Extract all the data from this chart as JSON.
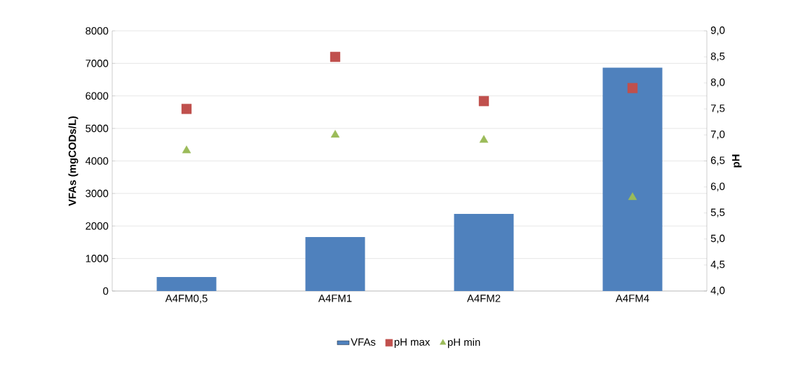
{
  "chart_data": {
    "type": "bar",
    "categories": [
      "A4FM0,5",
      "A4FM1",
      "A4FM2",
      "A4FM4"
    ],
    "series": [
      {
        "name": "VFAs",
        "color": "#4f81bd",
        "values": [
          430,
          1660,
          2370,
          6870
        ]
      },
      {
        "name": "pH max",
        "type": "scatter",
        "axis": "y2",
        "marker": "square",
        "color": "#c0504d",
        "values": [
          7.5,
          8.5,
          7.65,
          7.9
        ]
      },
      {
        "name": "pH min",
        "type": "scatter",
        "axis": "y2",
        "marker": "triangle",
        "color": "#9bbb59",
        "values": [
          6.7,
          7.0,
          6.9,
          5.8
        ]
      }
    ],
    "ylabel": "VFAs (mgCODs/L)",
    "y2label": "pH",
    "ylim": [
      0,
      8000
    ],
    "yticks": [
      0,
      1000,
      2000,
      3000,
      4000,
      5000,
      6000,
      7000,
      8000
    ],
    "y2lim": [
      4,
      9
    ],
    "y2ticks": [
      {
        "value": 4,
        "label": "4,0"
      },
      {
        "value": 4.5,
        "label": "4,5"
      },
      {
        "value": 5,
        "label": "5,0"
      },
      {
        "value": 5.5,
        "label": "5,5"
      },
      {
        "value": 6,
        "label": "6,0"
      },
      {
        "value": 6.5,
        "label": "6,5"
      },
      {
        "value": 7,
        "label": "7,0"
      },
      {
        "value": 7.5,
        "label": "7,5"
      },
      {
        "value": 8,
        "label": "8,0"
      },
      {
        "value": 8.5,
        "label": "8,5"
      },
      {
        "value": 9,
        "label": "9,0"
      }
    ],
    "grid": "y",
    "legend": "bottom"
  }
}
